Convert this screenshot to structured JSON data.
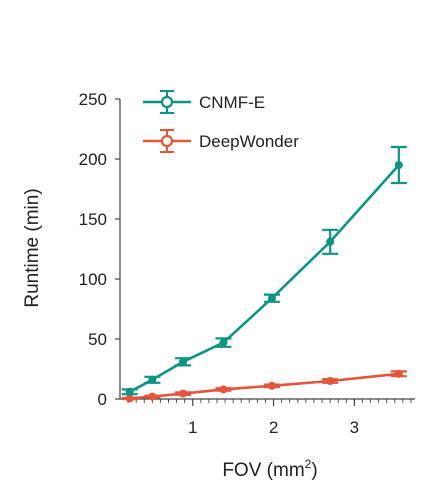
{
  "colors": {
    "cnmf": "#0d9483",
    "deepwonder": "#e4553a",
    "axis": "#444444"
  },
  "chart_data": {
    "type": "line",
    "xlabel": "FOV (mm",
    "xlabel_superscript": "2",
    "xlabel_suffix": ")",
    "ylabel": "Runtime (min)",
    "xlim": [
      0.1,
      3.75
    ],
    "ylim": [
      0,
      250
    ],
    "xticks": [
      1,
      2,
      3
    ],
    "yticks": [
      0,
      50,
      100,
      150,
      200,
      250
    ],
    "legend": {
      "position": "top-left"
    },
    "series": [
      {
        "name": "CNMF-E",
        "color_key": "cnmf",
        "x": [
          0.22,
          0.5,
          0.88,
          1.38,
          1.98,
          2.7,
          3.55
        ],
        "y": [
          6,
          16,
          31,
          47,
          84,
          131,
          195
        ],
        "err": [
          2,
          2.5,
          3,
          3.5,
          3,
          10,
          15
        ]
      },
      {
        "name": "DeepWonder",
        "color_key": "deepwonder",
        "x": [
          0.22,
          0.5,
          0.88,
          1.38,
          1.98,
          2.7,
          3.55
        ],
        "y": [
          0.5,
          2,
          4.5,
          8,
          11,
          15,
          21
        ],
        "err": [
          0.5,
          0.7,
          1,
          1,
          1,
          1.5,
          2
        ]
      }
    ]
  }
}
